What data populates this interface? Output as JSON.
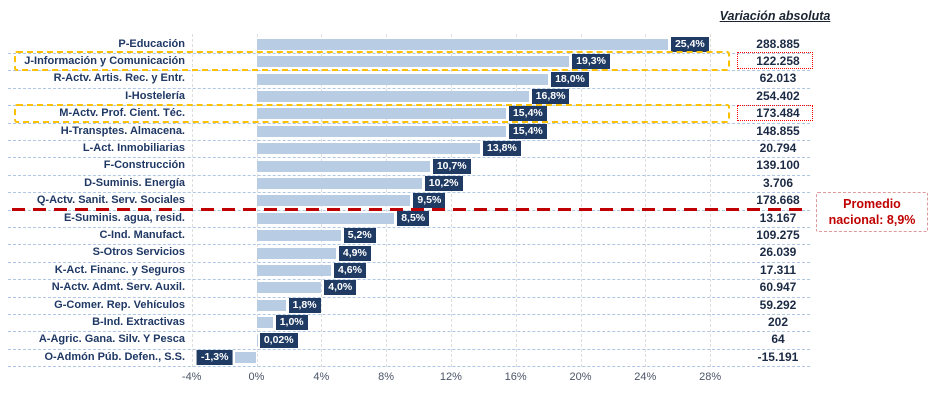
{
  "chart_data": {
    "type": "bar",
    "orientation": "horizontal",
    "right_column_title": "Variación absoluta",
    "categories": [
      "P-Educación",
      "J-Información y Comunicación",
      "R-Actv. Artis. Rec. y Entr.",
      "I-Hostelería",
      "M-Actv. Prof. Cient. Téc.",
      "H-Transptes. Almacena.",
      "L-Act. Inmobiliarias",
      "F-Construcción",
      "D-Suminis. Energía",
      "Q-Actv. Sanit. Serv. Sociales",
      "E-Suminis. agua, resid.",
      "C-Ind. Manufact.",
      "S-Otros Servicios",
      "K-Act. Financ. y Seguros",
      "N-Actv. Admt. Serv. Auxil.",
      "G-Comer. Rep. Vehículos",
      "B-Ind. Extractivas",
      "A-Agric. Gana. Silv. Y Pesca",
      "O-Admón Púb. Defen., S.S."
    ],
    "pct_values": [
      25.4,
      19.3,
      18.0,
      16.8,
      15.4,
      15.4,
      13.8,
      10.7,
      10.2,
      9.5,
      8.5,
      5.2,
      4.9,
      4.6,
      4.0,
      1.8,
      1.0,
      0.02,
      -1.3
    ],
    "pct_labels": [
      "25,4%",
      "19,3%",
      "18,0%",
      "16,8%",
      "15,4%",
      "15,4%",
      "13,8%",
      "10,7%",
      "10,2%",
      "9,5%",
      "8,5%",
      "5,2%",
      "4,9%",
      "4,6%",
      "4,0%",
      "1,8%",
      "1,0%",
      "0,02%",
      "-1,3%"
    ],
    "abs_values": [
      "288.885",
      "122.258",
      "62.013",
      "254.402",
      "173.484",
      "148.855",
      "20.794",
      "139.100",
      "3.706",
      "178.668",
      "13.167",
      "109.275",
      "26.039",
      "17.311",
      "60.947",
      "59.292",
      "202",
      "64",
      "-15.191"
    ],
    "x_tick_values": [
      -4,
      0,
      4,
      8,
      12,
      16,
      20,
      24,
      28
    ],
    "x_tick_labels": [
      "-4%",
      "0%",
      "4%",
      "8%",
      "12%",
      "16%",
      "20%",
      "24%",
      "28%"
    ],
    "xlim": [
      -4.2,
      29.3
    ],
    "grid": "vertical-dashed",
    "highlighted_rows": [
      1,
      4
    ],
    "divider_after_row_index": 9,
    "annotation": {
      "line1": "Promedio",
      "line2": "nacional: 8,9%",
      "national_average": "8,9%"
    },
    "colors": {
      "bar_fill": "#B8CCE4",
      "label_box_bg": "#1F3B63",
      "label_box_text": "#FFFFFF",
      "category_text": "#1F3864",
      "value_text": "#1B2A44",
      "axis_text": "#4A5568",
      "grid_vertical": "#DEDEDE",
      "row_separator": "#AFC7E2",
      "highlight_border": "#FFC000",
      "value_highlight_border": "#FF0000",
      "average_line": "#C00000",
      "annotation_text": "#C00000",
      "annotation_border": "#DC9B9B"
    }
  }
}
